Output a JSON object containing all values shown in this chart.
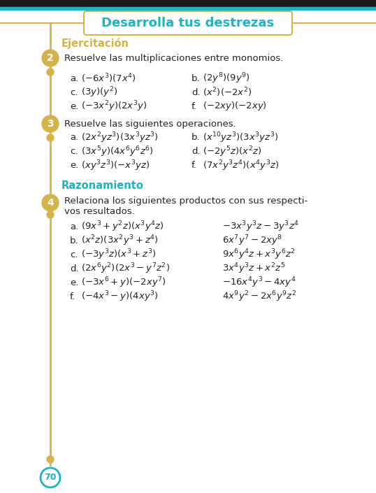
{
  "title": "Desarrolla tus destrezas",
  "title_color": "#1bb3c8",
  "title_box_border_color": "#d4b44a",
  "title_box_bg": "#ffffff",
  "bg_color": "#ffffff",
  "timeline_color": "#d4b44a",
  "section1_label": "Ejercitación",
  "section1_color": "#d4b44a",
  "section2_label": "Razonamiento",
  "section2_color": "#1bb3c8",
  "bullet_color": "#d4b44a",
  "page_num": "70",
  "page_circle_color": "#1bb3c8",
  "top_line_color": "#1bb3c8",
  "fig_w": 5.38,
  "fig_h": 7.05,
  "dpi": 100
}
